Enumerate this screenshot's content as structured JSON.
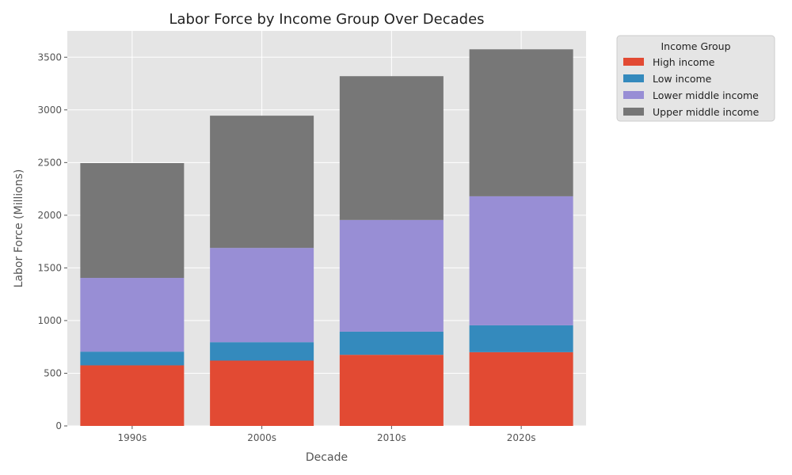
{
  "chart_data": {
    "type": "bar",
    "stacked": true,
    "title": "Labor Force by Income Group Over Decades",
    "xlabel": "Decade",
    "ylabel": "Labor Force (Millions)",
    "categories": [
      "1990s",
      "2000s",
      "2010s",
      "2020s"
    ],
    "series": [
      {
        "name": "High income",
        "color": "#E24A33",
        "values": [
          575,
          620,
          675,
          700
        ]
      },
      {
        "name": "Low income",
        "color": "#348ABD",
        "values": [
          130,
          175,
          220,
          255
        ]
      },
      {
        "name": "Lower middle income",
        "color": "#988ED5",
        "values": [
          700,
          895,
          1060,
          1225
        ]
      },
      {
        "name": "Upper middle income",
        "color": "#777777",
        "values": [
          1090,
          1255,
          1365,
          1395
        ]
      }
    ],
    "ylim": [
      0,
      3750
    ],
    "yticks": [
      0,
      500,
      1000,
      1500,
      2000,
      2500,
      3000,
      3500
    ],
    "grid": true,
    "legend": {
      "title": "Income Group",
      "placement": "outside-top-right"
    },
    "style": {
      "plot_background": "#E5E5E5",
      "grid_color": "#FFFFFF"
    }
  }
}
